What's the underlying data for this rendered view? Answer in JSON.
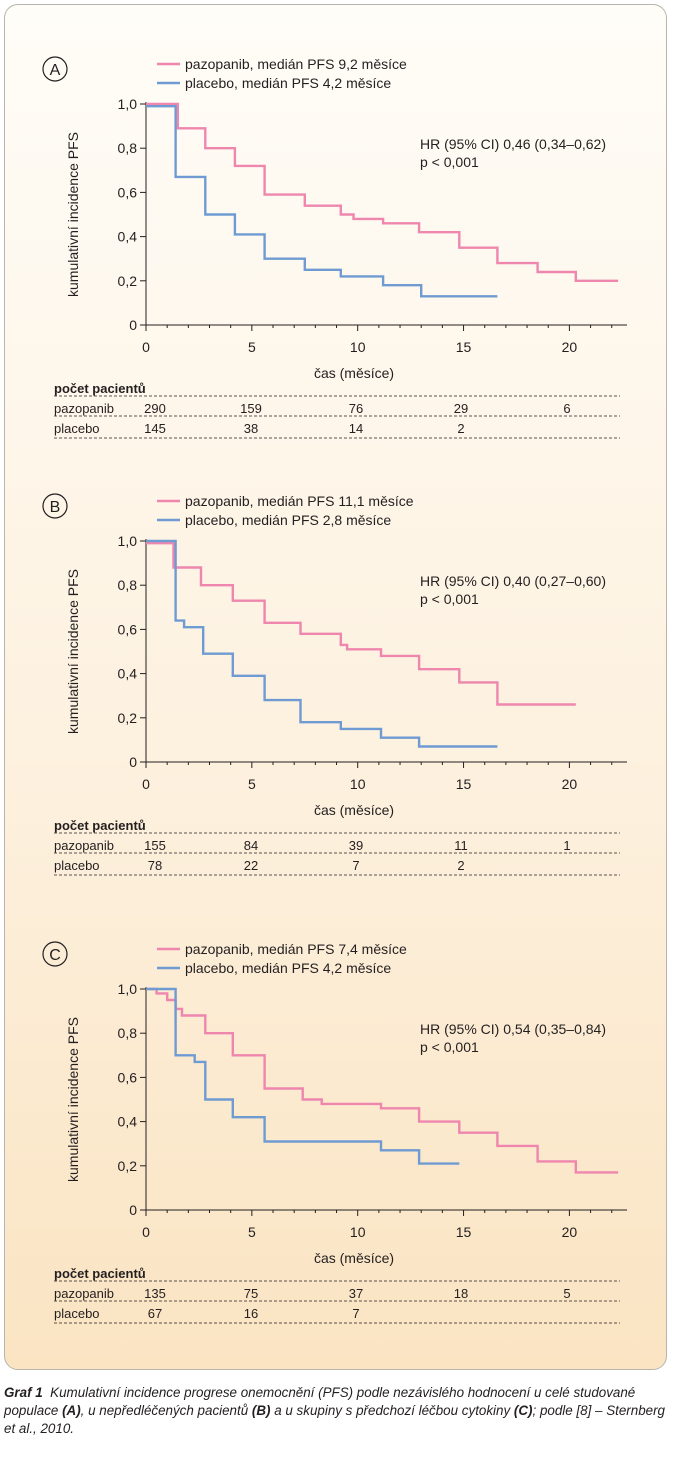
{
  "chart_data": [
    {
      "type": "line",
      "panel_label": "A",
      "legend": [
        "pazopanib, medián PFS 9,2 měsíce",
        "placebo, medián PFS 4,2 měsíce"
      ],
      "ylabel": "kumulativní incidence PFS",
      "xlabel": "čas (měsíce)",
      "x_ticks": [
        "0",
        "5",
        "10",
        "15",
        "20"
      ],
      "y_ticks": [
        "0",
        "0,2",
        "0,4",
        "0,6",
        "0,8",
        "1,0"
      ],
      "xlim": [
        0,
        22.5
      ],
      "ylim": [
        0,
        1.0
      ],
      "annotation": [
        "HR (95% CI) 0,46 (0,34–0,62)",
        "p < 0,001"
      ],
      "series": [
        {
          "name": "pazopanib",
          "color": "#ee86ae",
          "x": [
            0,
            1.5,
            1.5,
            2.8,
            2.8,
            4.2,
            4.2,
            5.6,
            5.6,
            7.5,
            7.5,
            9.2,
            9.2,
            9.8,
            9.8,
            11.2,
            11.2,
            12.9,
            12.9,
            14.8,
            14.8,
            16.6,
            16.6,
            18.5,
            18.5,
            20.3,
            20.3,
            22.3
          ],
          "y": [
            1.0,
            1.0,
            0.89,
            0.89,
            0.8,
            0.8,
            0.72,
            0.72,
            0.59,
            0.59,
            0.54,
            0.54,
            0.5,
            0.5,
            0.48,
            0.48,
            0.46,
            0.46,
            0.42,
            0.42,
            0.35,
            0.35,
            0.28,
            0.28,
            0.24,
            0.24,
            0.2,
            0.2
          ]
        },
        {
          "name": "placebo",
          "color": "#6f9bd2",
          "x": [
            0,
            1.4,
            1.4,
            2.8,
            2.8,
            4.2,
            4.2,
            5.6,
            5.6,
            7.5,
            7.5,
            9.2,
            9.2,
            11.2,
            11.2,
            13.0,
            13.0,
            16.6
          ],
          "y": [
            0.99,
            0.99,
            0.67,
            0.67,
            0.5,
            0.5,
            0.41,
            0.41,
            0.3,
            0.3,
            0.25,
            0.25,
            0.22,
            0.22,
            0.18,
            0.18,
            0.13,
            0.13
          ]
        }
      ],
      "risk_table": {
        "header": "počet pacientů",
        "rows": [
          {
            "label": "pazopanib",
            "values": [
              "290",
              "159",
              "76",
              "29",
              "6"
            ]
          },
          {
            "label": "placebo",
            "values": [
              "145",
              "38",
              "14",
              "2",
              ""
            ]
          }
        ]
      }
    },
    {
      "type": "line",
      "panel_label": "B",
      "legend": [
        "pazopanib, medián PFS 11,1 měsíce",
        "placebo, medián PFS 2,8 měsíce"
      ],
      "ylabel": "kumulativní incidence PFS",
      "xlabel": "čas (měsíce)",
      "x_ticks": [
        "0",
        "5",
        "10",
        "15",
        "20"
      ],
      "y_ticks": [
        "0",
        "0,2",
        "0,4",
        "0,6",
        "0,8",
        "1,0"
      ],
      "xlim": [
        0,
        22.5
      ],
      "ylim": [
        0,
        1.0
      ],
      "annotation": [
        "HR (95% CI) 0,40 (0,27–0,60)",
        "p < 0,001"
      ],
      "series": [
        {
          "name": "pazopanib",
          "color": "#ee86ae",
          "x": [
            0,
            1.3,
            1.3,
            2.6,
            2.6,
            4.1,
            4.1,
            5.6,
            5.6,
            7.3,
            7.3,
            9.2,
            9.2,
            9.5,
            9.5,
            11.1,
            11.1,
            12.9,
            12.9,
            14.8,
            14.8,
            16.6,
            16.6,
            20.3
          ],
          "y": [
            0.99,
            0.99,
            0.88,
            0.88,
            0.8,
            0.8,
            0.73,
            0.73,
            0.63,
            0.63,
            0.58,
            0.58,
            0.53,
            0.53,
            0.51,
            0.51,
            0.48,
            0.48,
            0.42,
            0.42,
            0.36,
            0.36,
            0.26,
            0.26
          ]
        },
        {
          "name": "placebo",
          "color": "#6f9bd2",
          "x": [
            0,
            1.4,
            1.4,
            1.8,
            1.8,
            2.7,
            2.7,
            4.1,
            4.1,
            5.6,
            5.6,
            7.3,
            7.3,
            9.2,
            9.2,
            11.1,
            11.1,
            12.9,
            12.9,
            16.6
          ],
          "y": [
            1.0,
            1.0,
            0.64,
            0.64,
            0.61,
            0.61,
            0.49,
            0.49,
            0.39,
            0.39,
            0.28,
            0.28,
            0.18,
            0.18,
            0.15,
            0.15,
            0.11,
            0.11,
            0.07,
            0.07
          ]
        }
      ],
      "risk_table": {
        "header": "počet pacientů",
        "rows": [
          {
            "label": "pazopanib",
            "values": [
              "155",
              "84",
              "39",
              "11",
              "1"
            ]
          },
          {
            "label": "placebo",
            "values": [
              "78",
              "22",
              "7",
              "2",
              ""
            ]
          }
        ]
      }
    },
    {
      "type": "line",
      "panel_label": "C",
      "legend": [
        "pazopanib, medián PFS 7,4 měsíce",
        "placebo, medián PFS 4,2 měsíce"
      ],
      "ylabel": "kumulativní incidence PFS",
      "xlabel": "čas (měsíce)",
      "x_ticks": [
        "0",
        "5",
        "10",
        "15",
        "20"
      ],
      "y_ticks": [
        "0",
        "0,2",
        "0,4",
        "0,6",
        "0,8",
        "1,0"
      ],
      "xlim": [
        0,
        22.5
      ],
      "ylim": [
        0,
        1.0
      ],
      "annotation": [
        "HR (95% CI) 0,54 (0,35–0,84)",
        "p < 0,001"
      ],
      "series": [
        {
          "name": "pazopanib",
          "color": "#ee86ae",
          "x": [
            0,
            0.5,
            0.5,
            1.0,
            1.0,
            1.4,
            1.4,
            1.7,
            1.7,
            2.8,
            2.8,
            4.1,
            4.1,
            5.6,
            5.6,
            7.4,
            7.4,
            8.3,
            8.3,
            11.1,
            11.1,
            12.9,
            12.9,
            14.8,
            14.8,
            16.6,
            16.6,
            18.5,
            18.5,
            20.3,
            20.3,
            22.3
          ],
          "y": [
            1.0,
            1.0,
            0.98,
            0.98,
            0.95,
            0.95,
            0.91,
            0.91,
            0.88,
            0.88,
            0.8,
            0.8,
            0.7,
            0.7,
            0.55,
            0.55,
            0.5,
            0.5,
            0.48,
            0.48,
            0.46,
            0.46,
            0.4,
            0.4,
            0.35,
            0.35,
            0.29,
            0.29,
            0.22,
            0.22,
            0.17,
            0.17
          ]
        },
        {
          "name": "placebo",
          "color": "#6f9bd2",
          "x": [
            0,
            1.4,
            1.4,
            2.3,
            2.3,
            2.8,
            2.8,
            4.1,
            4.1,
            5.6,
            5.6,
            11.1,
            11.1,
            12.9,
            12.9,
            14.8
          ],
          "y": [
            1.0,
            1.0,
            0.7,
            0.7,
            0.67,
            0.67,
            0.5,
            0.5,
            0.42,
            0.42,
            0.31,
            0.31,
            0.27,
            0.27,
            0.21,
            0.21
          ]
        }
      ],
      "risk_table": {
        "header": "počet pacientů",
        "rows": [
          {
            "label": "pazopanib",
            "values": [
              "135",
              "75",
              "37",
              "18",
              "5"
            ]
          },
          {
            "label": "placebo",
            "values": [
              "67",
              "16",
              "7",
              "",
              ""
            ]
          }
        ]
      }
    }
  ],
  "caption": {
    "label": "Graf 1",
    "text_1": "Kumulativní incidence progrese onemocnění (PFS) podle nezávislého hodnocení u celé studované populace ",
    "ref_a": "(A)",
    "text_2": ", u nepředléčených pacientů ",
    "ref_b": "(B)",
    "text_3": " a u skupiny s předchozí léčbou cytokiny ",
    "ref_c": "(C)",
    "text_4": "; podle [8] – Sternberg et al., 2010."
  }
}
